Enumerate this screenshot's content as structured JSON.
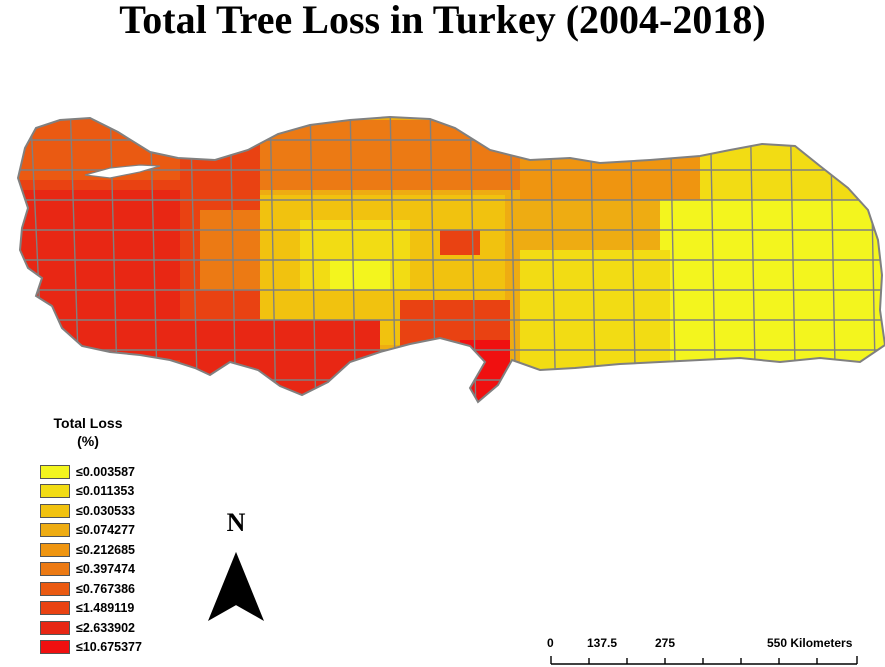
{
  "title": "Total Tree Loss in Turkey (2004-2018)",
  "legend": {
    "title_line1": "Total Loss",
    "title_line2": "(%)",
    "classes": [
      {
        "label": "≤0.003587",
        "color": "#f3f51e"
      },
      {
        "label": "≤0.011353",
        "color": "#f2dc14"
      },
      {
        "label": "≤0.030533",
        "color": "#f1c20f"
      },
      {
        "label": "≤0.074277",
        "color": "#eeac12"
      },
      {
        "label": "≤0.212685",
        "color": "#ef9510"
      },
      {
        "label": "≤0.397474",
        "color": "#ec7a14"
      },
      {
        "label": "≤0.767386",
        "color": "#ea5a12"
      },
      {
        "label": "≤1.489119",
        "color": "#e94212"
      },
      {
        "label": "≤2.633902",
        "color": "#e82714"
      },
      {
        "label": "≤10.675377",
        "color": "#f01010"
      }
    ]
  },
  "north_arrow": {
    "letter": "N"
  },
  "scale_bar": {
    "labels": [
      "0",
      "137.5",
      "275",
      "550 Kilometers"
    ]
  },
  "colors": {
    "boundary": "#808080",
    "text": "#000000"
  }
}
